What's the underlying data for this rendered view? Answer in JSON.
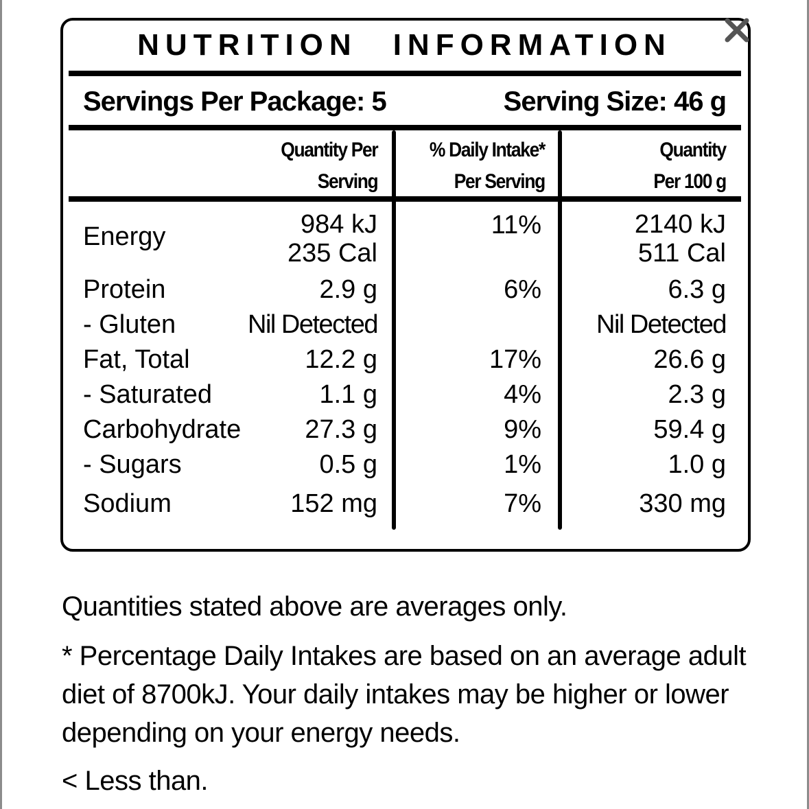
{
  "close_icon": "close-icon",
  "title": {
    "word1": "NUTRITION",
    "word2": "INFORMATION"
  },
  "servings": {
    "per_package": "Servings Per Package: 5",
    "serving_size": "Serving Size: 46 g"
  },
  "columns": {
    "qty_serving_line1": "Quantity Per",
    "qty_serving_line2": "Serving",
    "daily_line1": "% Daily Intake*",
    "daily_line2": "Per Serving",
    "qty_100g_line1": "Quantity",
    "qty_100g_line2": "Per 100 g"
  },
  "energy": {
    "label": "Energy",
    "per_serving_kj": "984 kJ",
    "per_serving_cal": "235 Cal",
    "daily": "11%",
    "per_100g_kj": "2140 kJ",
    "per_100g_cal": "511 Cal"
  },
  "rows": [
    {
      "label": "Protein",
      "per_serving": "2.9 g",
      "daily": "6%",
      "per_100g": "6.3 g"
    },
    {
      "label": "- Gluten",
      "per_serving": "Nil Detected",
      "daily": "",
      "per_100g": "Nil Detected"
    },
    {
      "label": "Fat, Total",
      "per_serving": "12.2 g",
      "daily": "17%",
      "per_100g": "26.6 g"
    },
    {
      "label": "- Saturated",
      "per_serving": "1.1 g",
      "daily": "4%",
      "per_100g": "2.3 g"
    },
    {
      "label": "Carbohydrate",
      "per_serving": "27.3 g",
      "daily": "9%",
      "per_100g": "59.4 g"
    },
    {
      "label": "- Sugars",
      "per_serving": "0.5 g",
      "daily": "1%",
      "per_100g": "1.0 g"
    },
    {
      "label": "Sodium",
      "per_serving": "152 mg",
      "daily": "7%",
      "per_100g": "330 mg"
    }
  ],
  "footnotes": {
    "averages": "Quantities stated above are averages only.",
    "daily_line1": "* Percentage Daily Intakes are based on an average adult",
    "daily_line2": "diet of 8700kJ. Your daily intakes may be higher or lower",
    "daily_line3": "depending on your energy needs.",
    "less_than": "< Less than."
  }
}
